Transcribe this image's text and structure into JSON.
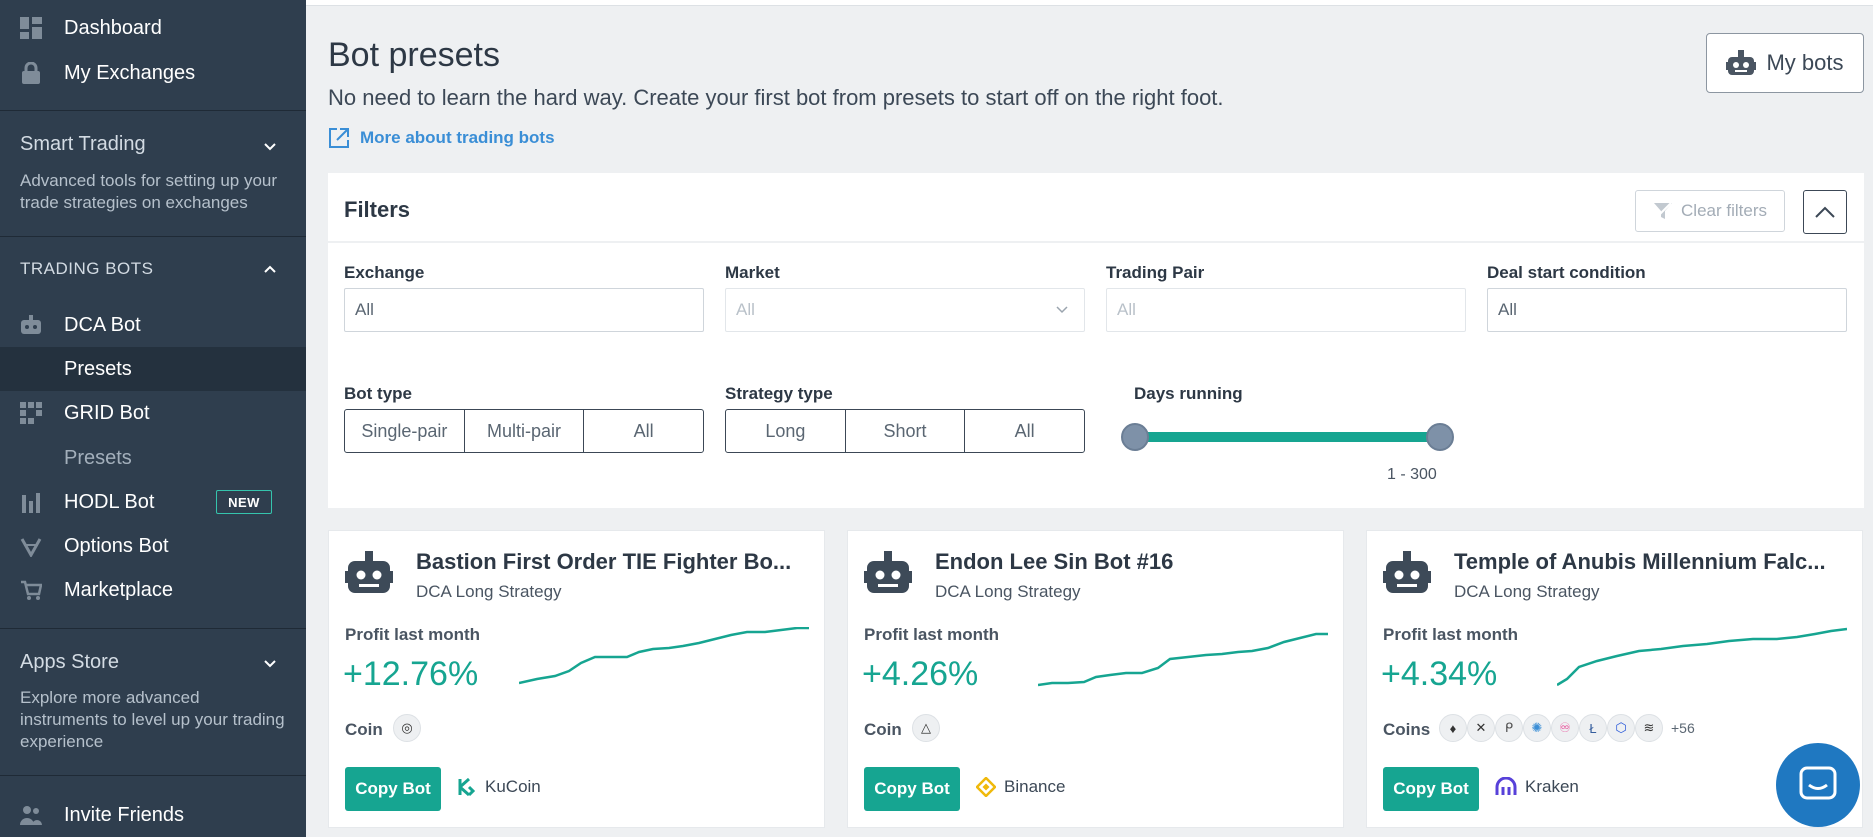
{
  "sidebar": {
    "dashboard": "Dashboard",
    "my_exchanges": "My Exchanges",
    "smart_trading": {
      "title": "Smart Trading",
      "desc": "Advanced tools for setting up your trade strategies on exchanges"
    },
    "trading_bots_title": "TRADING BOTS",
    "dca_bot": "DCA Bot",
    "dca_presets": "Presets",
    "grid_bot": "GRID Bot",
    "grid_presets": "Presets",
    "hodl_bot": "HODL Bot",
    "new_badge": "NEW",
    "options_bot": "Options Bot",
    "marketplace": "Marketplace",
    "apps_store": {
      "title": "Apps Store",
      "desc": "Explore more advanced instruments to level up your trading experience"
    },
    "invite_friends": "Invite Friends"
  },
  "header": {
    "title": "Bot presets",
    "subtitle": "No need to learn the hard way. Create your first bot from presets to start off on the right foot.",
    "more_link": "More about trading bots",
    "my_bots": "My bots"
  },
  "filters": {
    "title": "Filters",
    "clear": "Clear filters",
    "exchange": {
      "label": "Exchange",
      "value": "All"
    },
    "market": {
      "label": "Market",
      "value": "All"
    },
    "trading_pair": {
      "label": "Trading Pair",
      "value": "All"
    },
    "deal_start": {
      "label": "Deal start condition",
      "value": "All"
    },
    "bot_type": {
      "label": "Bot type",
      "options": [
        "Single-pair",
        "Multi-pair",
        "All"
      ]
    },
    "strategy_type": {
      "label": "Strategy type",
      "options": [
        "Long",
        "Short",
        "All"
      ]
    },
    "days_running": {
      "label": "Days running",
      "range": "1 - 300",
      "min": 1,
      "max": 300
    }
  },
  "cards": [
    {
      "name": "Bastion First Order TIE Fighter Bo...",
      "strategy": "DCA Long Strategy",
      "profit_label": "Profit last month",
      "profit": "+12.76%",
      "coin_label": "Coin",
      "copy": "Copy Bot",
      "exchange": "KuCoin"
    },
    {
      "name": "Endon Lee Sin Bot #16",
      "strategy": "DCA Long Strategy",
      "profit_label": "Profit last month",
      "profit": "+4.26%",
      "coin_label": "Coin",
      "copy": "Copy Bot",
      "exchange": "Binance"
    },
    {
      "name": "Temple of Anubis Millennium Falc...",
      "strategy": "DCA Long Strategy",
      "profit_label": "Profit last month",
      "profit": "+4.34%",
      "coin_label": "Coins",
      "more_coins": "+56",
      "copy": "Copy Bot",
      "exchange": "Kraken"
    }
  ],
  "colors": {
    "sidebar_bg": "#2f3e4e",
    "accent": "#16a591",
    "link": "#3a8ed6"
  }
}
